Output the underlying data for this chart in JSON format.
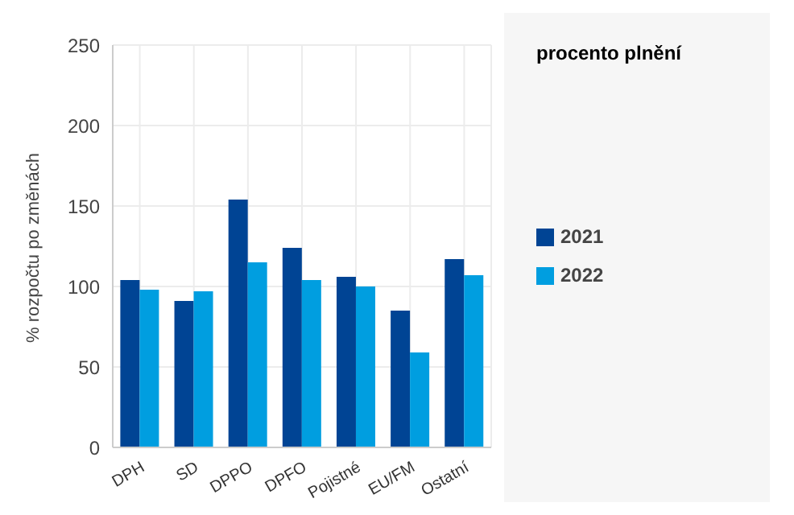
{
  "chart_data": {
    "type": "bar",
    "ylabel": "% rozpočtu po změnách",
    "legend_title": "procento plnění",
    "categories": [
      "DPH",
      "SD",
      "DPPO",
      "DPFO",
      "Pojistné",
      "EU/FM",
      "Ostatní"
    ],
    "series": [
      {
        "name": "2021",
        "color": "#004494",
        "values": [
          104,
          91,
          154,
          124,
          106,
          85,
          117
        ]
      },
      {
        "name": "2022",
        "color": "#009ee0",
        "values": [
          98,
          97,
          115,
          104,
          100,
          59,
          107
        ]
      }
    ],
    "ylim": [
      0,
      250
    ],
    "yticks": [
      0,
      50,
      100,
      150,
      200,
      250
    ],
    "grid": true,
    "legend": "right"
  }
}
